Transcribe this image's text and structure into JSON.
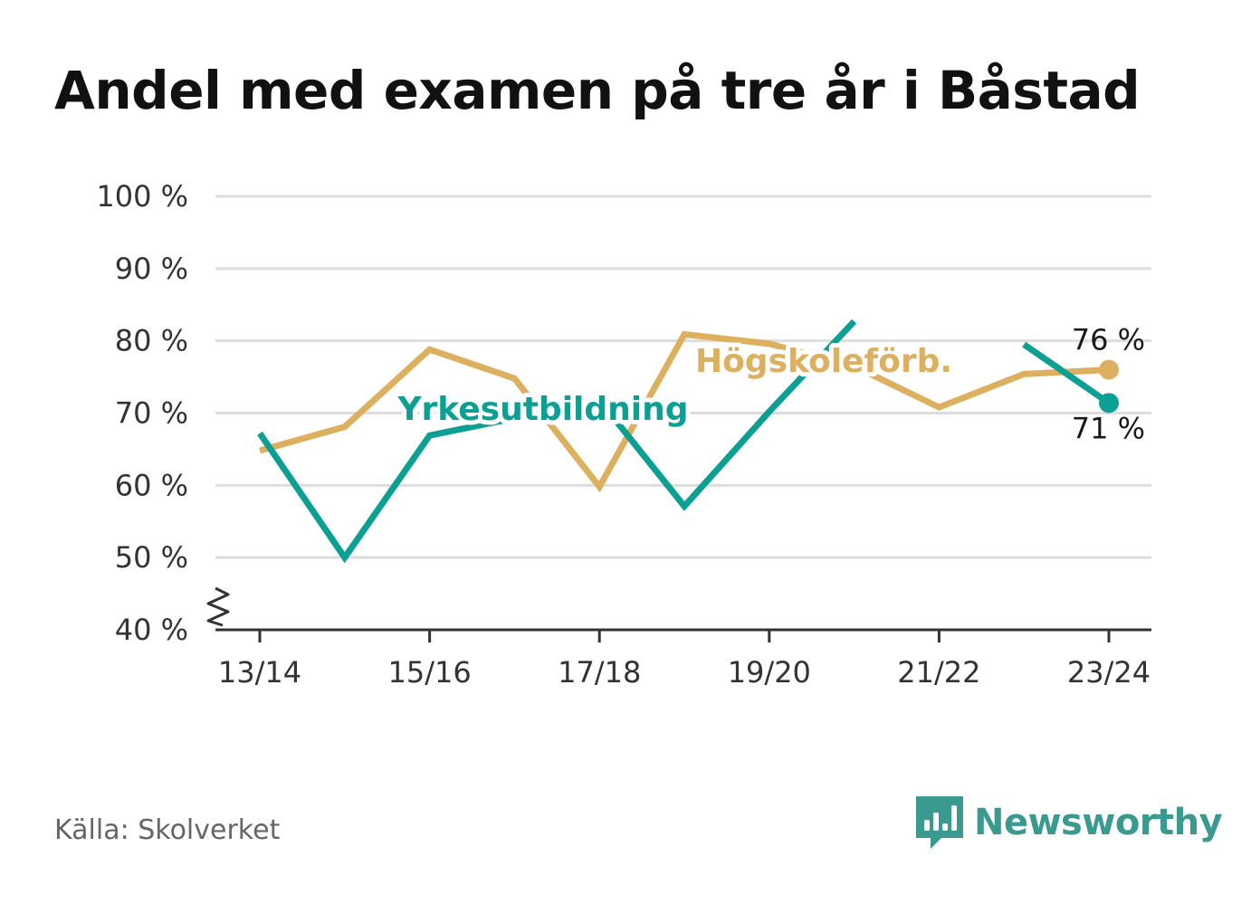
{
  "title": "Andel med examen på tre år i Båstad",
  "source": "Källa: Skolverket",
  "brand": "Newsworthy",
  "chart_data": {
    "type": "line",
    "title": "Andel med examen på tre år i Båstad",
    "x": [
      "13/14",
      "14/15",
      "15/16",
      "16/17",
      "17/18",
      "18/19",
      "19/20",
      "20/21",
      "21/22",
      "22/23",
      "23/24"
    ],
    "x_tick_labels": [
      "13/14",
      "15/16",
      "17/18",
      "19/20",
      "21/22",
      "23/24"
    ],
    "y_tick_labels": [
      "40 %",
      "50 %",
      "60 %",
      "70 %",
      "80 %",
      "90 %",
      "100 %"
    ],
    "ylim": [
      40,
      100
    ],
    "y_axis_break": true,
    "grid": true,
    "series": [
      {
        "name": "Högskoleförb.",
        "color": "#dcb05e",
        "values": [
          64.8,
          68.1,
          78.8,
          74.8,
          59.8,
          80.9,
          79.6,
          76.5,
          70.8,
          75.4,
          76.0
        ],
        "end_label": "76 %"
      },
      {
        "name": "Yrkesutbildning",
        "color": "#0c9f93",
        "values": [
          67.2,
          50.0,
          66.9,
          69.3,
          71.8,
          57.1,
          70.2,
          82.7,
          null,
          79.5,
          71.4
        ],
        "end_label": "71 %"
      }
    ]
  }
}
